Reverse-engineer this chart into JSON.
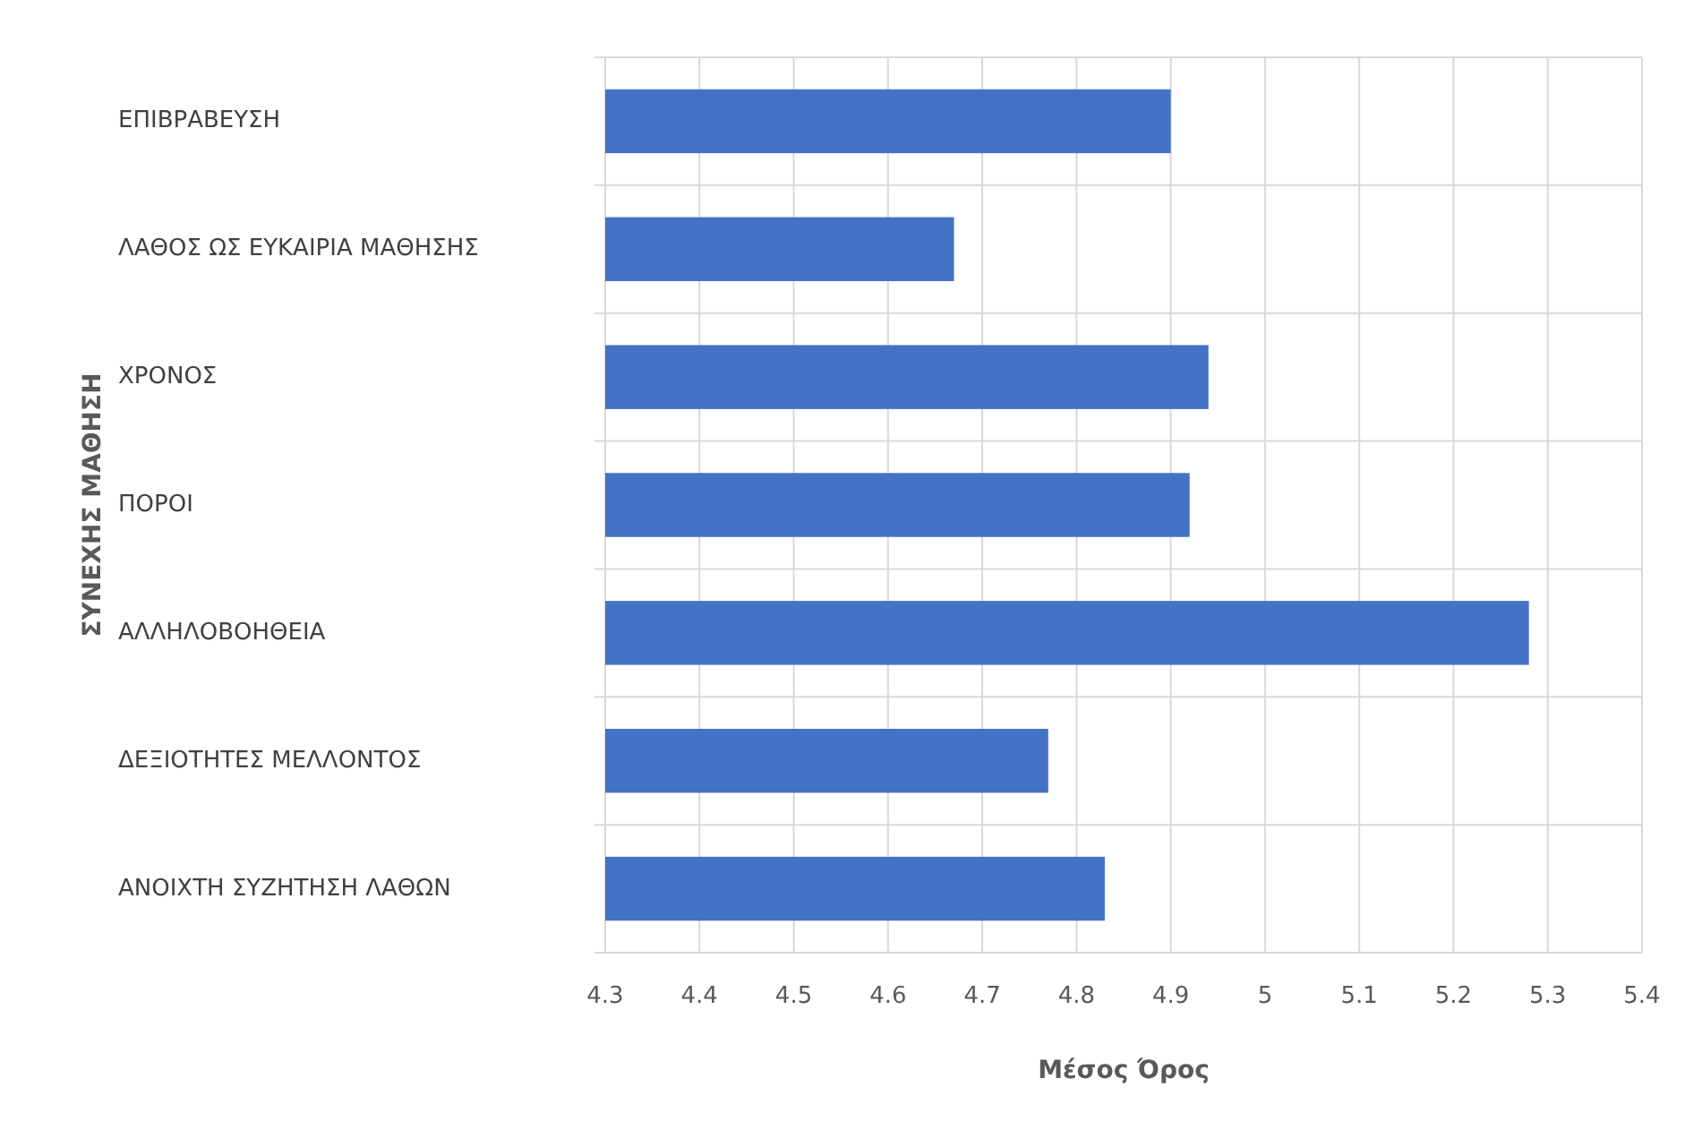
{
  "chart_data": {
    "type": "bar",
    "orientation": "horizontal",
    "ylabel": "ΣΥΝΕΧΗΣ ΜΑΘΗΣΗ",
    "xlabel": "Μέσος Όρος",
    "categories": [
      "ΕΠΙΒΡΑΒΕΥΣΗ",
      "ΛΑΘΟΣ ΩΣ ΕΥΚΑΙΡΙΑ ΜΑΘΗΣΗΣ",
      "ΧΡΟΝΟΣ",
      "ΠΟΡΟΙ",
      "ΑΛΛΗΛΟΒΟΗΘΕΙΑ",
      "ΔΕΞΙΟΤΗΤΕΣ ΜΕΛΛΟΝΤΟΣ",
      "ΑΝΟΙΧΤΗ ΣΥΖΗΤΗΣΗ ΛΑΘΩΝ"
    ],
    "values": [
      4.9,
      4.67,
      4.94,
      4.92,
      5.28,
      4.77,
      4.83
    ],
    "color": "#4472c4",
    "xlim": [
      4.3,
      5.4
    ],
    "xticks": [
      4.3,
      4.4,
      4.5,
      4.6,
      4.7,
      4.8,
      4.9,
      5,
      5.1,
      5.2,
      5.3,
      5.4
    ],
    "grid": true
  }
}
